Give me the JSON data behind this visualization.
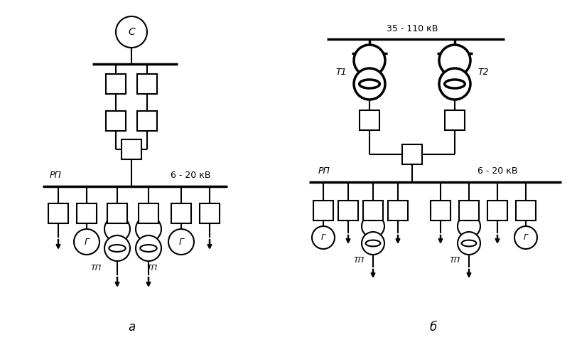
{
  "bg_color": "#ffffff",
  "line_color": "#000000",
  "lw": 1.5,
  "tlw": 2.5,
  "label_a": "а",
  "label_b": "б",
  "label_C": "С",
  "label_T1": "Т1",
  "label_T2": "Т2",
  "label_RP": "РП",
  "label_6_20": "6 - 20 кВ",
  "label_35_110": "35 - 110 кВ",
  "label_G": "Г",
  "label_TP": "ТП"
}
